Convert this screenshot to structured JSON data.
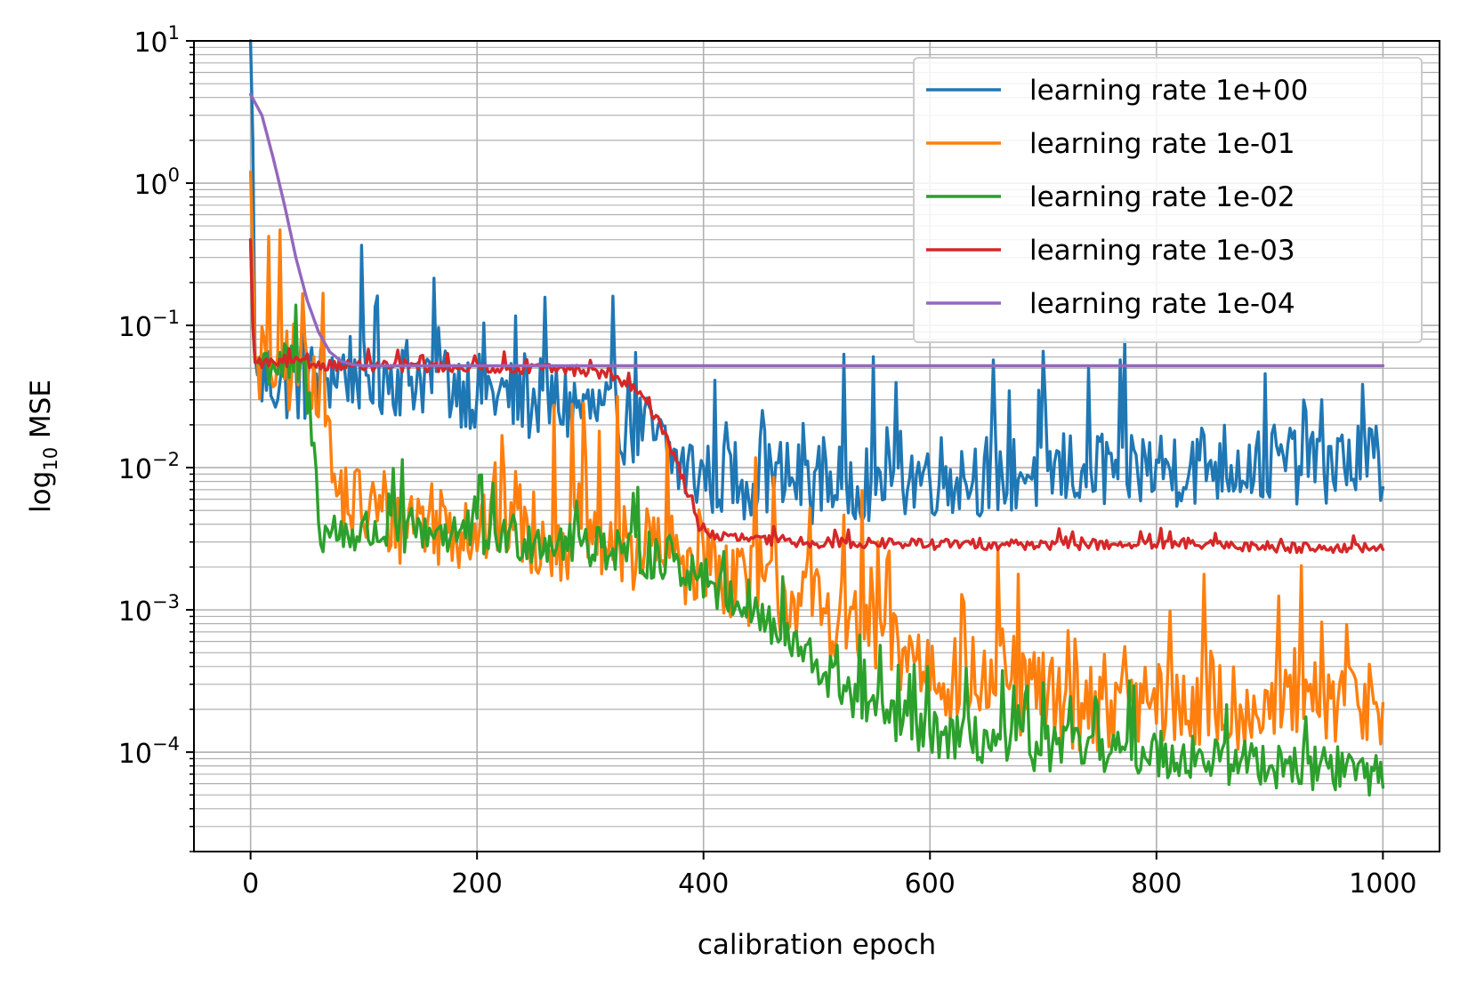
{
  "chart_data": {
    "type": "line",
    "xlabel": "calibration epoch",
    "ylabel_prefix": "log",
    "ylabel_sub": "10",
    "ylabel_suffix": " MSE",
    "yscale": "log",
    "xlim": [
      -50,
      1050
    ],
    "ylim": [
      2e-05,
      10
    ],
    "grid": "major and minor",
    "legend_position": "top-right",
    "x_ticks": [
      {
        "value": 0,
        "label": "0"
      },
      {
        "value": 200,
        "label": "200"
      },
      {
        "value": 400,
        "label": "400"
      },
      {
        "value": 600,
        "label": "600"
      },
      {
        "value": 800,
        "label": "800"
      },
      {
        "value": 1000,
        "label": "1000"
      }
    ],
    "y_ticks": [
      {
        "value": 10,
        "base": "10",
        "exp": "1"
      },
      {
        "value": 1,
        "base": "10",
        "exp": "0"
      },
      {
        "value": 0.1,
        "base": "10",
        "exp": "−1"
      },
      {
        "value": 0.01,
        "base": "10",
        "exp": "−2"
      },
      {
        "value": 0.001,
        "base": "10",
        "exp": "−3"
      },
      {
        "value": 0.0001,
        "base": "10",
        "exp": "−4"
      }
    ],
    "series": [
      {
        "name": "learning rate 1e+00",
        "color": "#1f77b4",
        "noise": 0.3,
        "points": [
          [
            0,
            10
          ],
          [
            2,
            2
          ],
          [
            4,
            0.06
          ],
          [
            6,
            0.045
          ],
          [
            20,
            0.042
          ],
          [
            50,
            0.04
          ],
          [
            80,
            0.05
          ],
          [
            120,
            0.045
          ],
          [
            160,
            0.045
          ],
          [
            200,
            0.035
          ],
          [
            240,
            0.03
          ],
          [
            280,
            0.028
          ],
          [
            300,
            0.025
          ],
          [
            320,
            0.022
          ],
          [
            340,
            0.02
          ],
          [
            360,
            0.015
          ],
          [
            380,
            0.01
          ],
          [
            400,
            0.009
          ],
          [
            450,
            0.0085
          ],
          [
            500,
            0.008
          ],
          [
            550,
            0.0085
          ],
          [
            600,
            0.009
          ],
          [
            650,
            0.009
          ],
          [
            700,
            0.0095
          ],
          [
            750,
            0.01
          ],
          [
            800,
            0.01
          ],
          [
            850,
            0.011
          ],
          [
            900,
            0.011
          ],
          [
            950,
            0.011
          ],
          [
            1000,
            0.011
          ]
        ]
      },
      {
        "name": "learning rate 1e-01",
        "color": "#ff7f0e",
        "noise": 0.35,
        "points": [
          [
            0,
            1.2
          ],
          [
            2,
            0.3
          ],
          [
            4,
            0.06
          ],
          [
            20,
            0.055
          ],
          [
            50,
            0.05
          ],
          [
            65,
            0.05
          ],
          [
            68,
            0.02
          ],
          [
            72,
            0.008
          ],
          [
            80,
            0.006
          ],
          [
            100,
            0.005
          ],
          [
            150,
            0.0045
          ],
          [
            200,
            0.004
          ],
          [
            250,
            0.0038
          ],
          [
            300,
            0.0033
          ],
          [
            350,
            0.0028
          ],
          [
            400,
            0.0022
          ],
          [
            450,
            0.0016
          ],
          [
            500,
            0.0011
          ],
          [
            550,
            0.0007
          ],
          [
            600,
            0.0004
          ],
          [
            650,
            0.0003
          ],
          [
            700,
            0.00025
          ],
          [
            750,
            0.00022
          ],
          [
            800,
            0.00022
          ],
          [
            850,
            0.00022
          ],
          [
            900,
            0.00022
          ],
          [
            950,
            0.00022
          ],
          [
            1000,
            0.00025
          ]
        ]
      },
      {
        "name": "learning rate 1e-02",
        "color": "#2ca02c",
        "noise": 0.18,
        "points": [
          [
            0,
            0.4
          ],
          [
            2,
            0.1
          ],
          [
            4,
            0.055
          ],
          [
            20,
            0.055
          ],
          [
            40,
            0.05
          ],
          [
            48,
            0.045
          ],
          [
            52,
            0.025
          ],
          [
            56,
            0.012
          ],
          [
            60,
            0.006
          ],
          [
            62,
            0.0035
          ],
          [
            100,
            0.0035
          ],
          [
            150,
            0.0037
          ],
          [
            200,
            0.0035
          ],
          [
            250,
            0.0032
          ],
          [
            300,
            0.003
          ],
          [
            350,
            0.0025
          ],
          [
            400,
            0.0018
          ],
          [
            450,
            0.0009
          ],
          [
            500,
            0.0004
          ],
          [
            550,
            0.0002
          ],
          [
            600,
            0.00014
          ],
          [
            650,
            0.00012
          ],
          [
            700,
            0.00011
          ],
          [
            750,
            0.00011
          ],
          [
            800,
            0.0001
          ],
          [
            850,
            9e-05
          ],
          [
            900,
            8.5e-05
          ],
          [
            950,
            8e-05
          ],
          [
            1000,
            7e-05
          ]
        ]
      },
      {
        "name": "learning rate 1e-03",
        "color": "#d62728",
        "noise": 0.04,
        "points": [
          [
            0,
            0.4
          ],
          [
            2,
            0.1
          ],
          [
            4,
            0.055
          ],
          [
            100,
            0.052
          ],
          [
            200,
            0.051
          ],
          [
            250,
            0.05
          ],
          [
            300,
            0.048
          ],
          [
            320,
            0.044
          ],
          [
            340,
            0.035
          ],
          [
            360,
            0.022
          ],
          [
            375,
            0.012
          ],
          [
            385,
            0.007
          ],
          [
            395,
            0.004
          ],
          [
            410,
            0.0033
          ],
          [
            450,
            0.0031
          ],
          [
            500,
            0.003
          ],
          [
            600,
            0.0029
          ],
          [
            700,
            0.0029
          ],
          [
            800,
            0.0029
          ],
          [
            900,
            0.0028
          ],
          [
            1000,
            0.0027
          ]
        ]
      },
      {
        "name": "learning rate 1e-04",
        "color": "#9467bd",
        "noise": 0,
        "points": [
          [
            0,
            4.2
          ],
          [
            10,
            3
          ],
          [
            20,
            1.5
          ],
          [
            30,
            0.7
          ],
          [
            40,
            0.3
          ],
          [
            50,
            0.15
          ],
          [
            60,
            0.09
          ],
          [
            70,
            0.065
          ],
          [
            80,
            0.056
          ],
          [
            90,
            0.053
          ],
          [
            100,
            0.052
          ],
          [
            200,
            0.052
          ],
          [
            300,
            0.052
          ],
          [
            400,
            0.052
          ],
          [
            500,
            0.052
          ],
          [
            600,
            0.052
          ],
          [
            700,
            0.052
          ],
          [
            800,
            0.052
          ],
          [
            900,
            0.052
          ],
          [
            1000,
            0.052
          ]
        ]
      }
    ]
  }
}
